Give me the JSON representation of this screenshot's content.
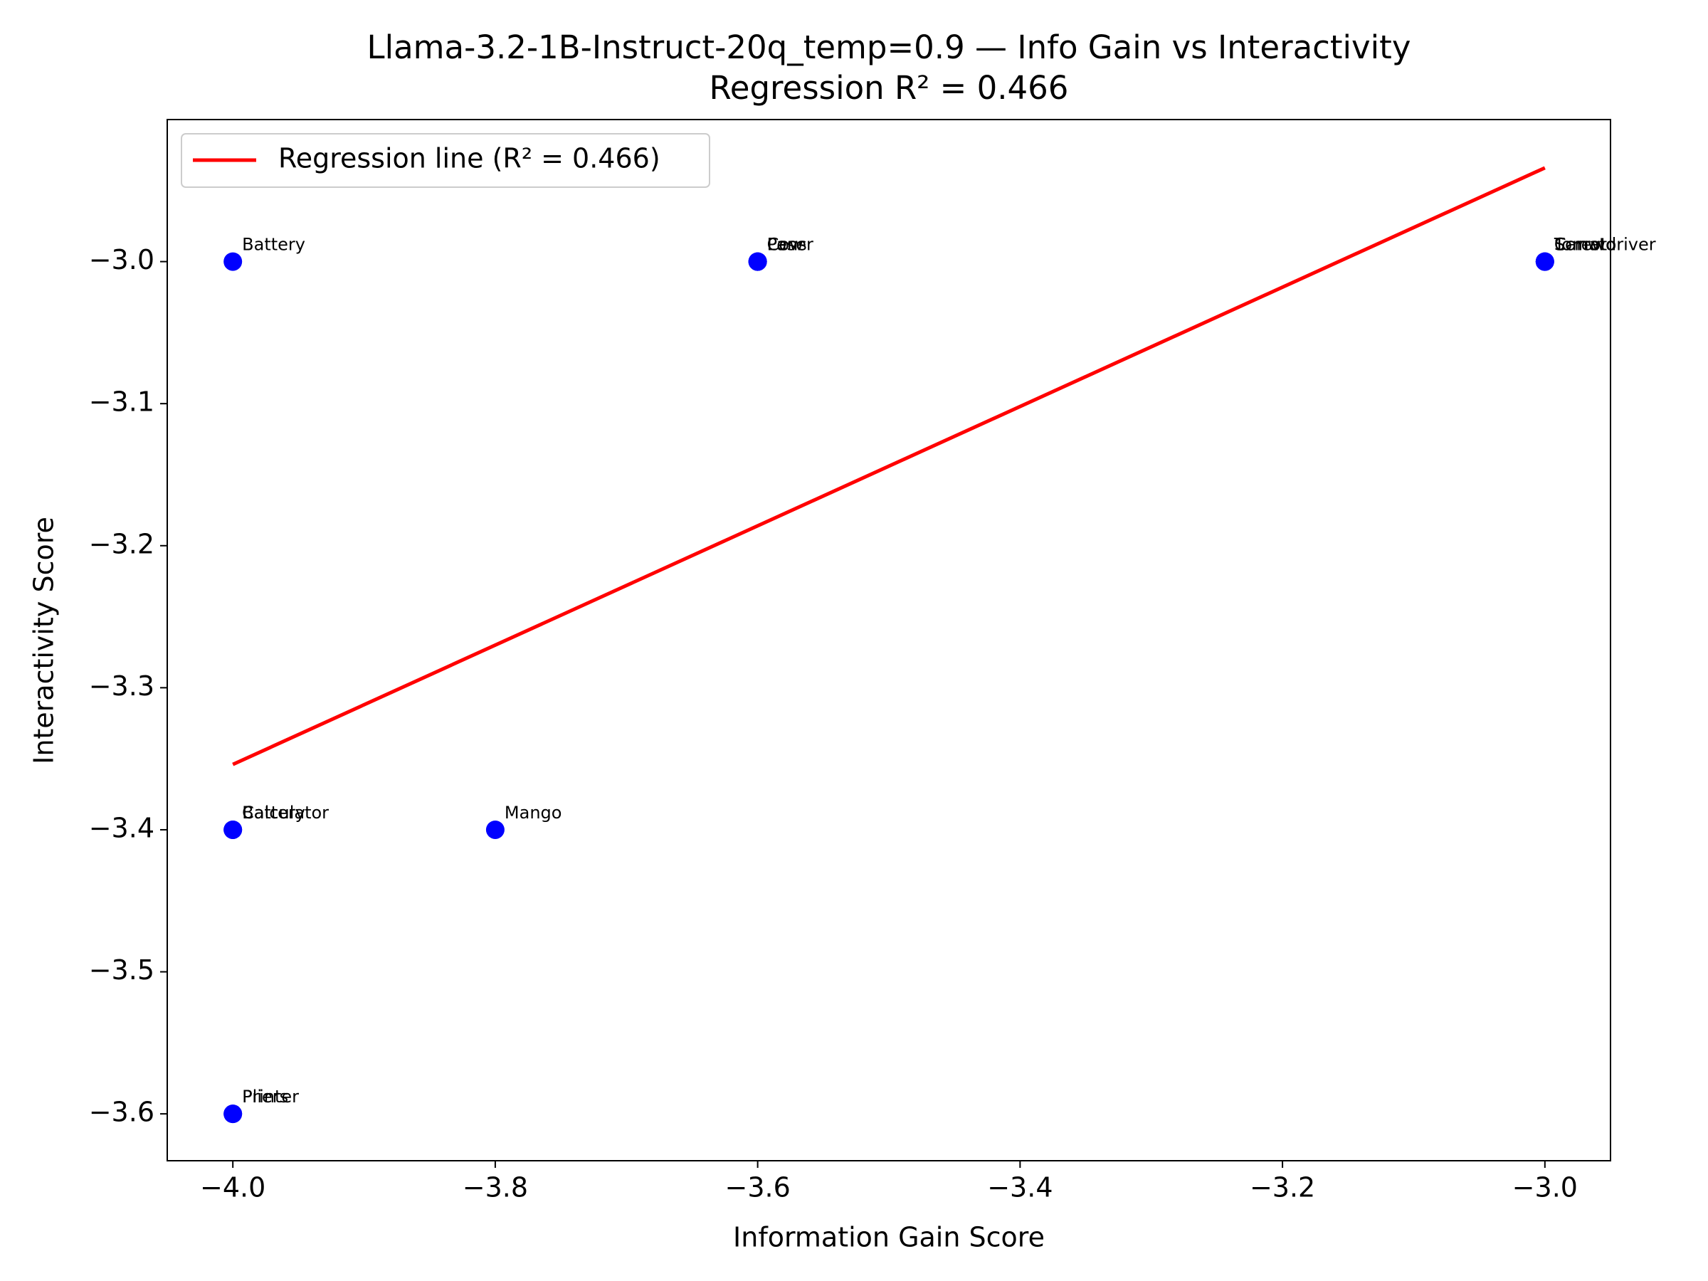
{
  "chart_data": {
    "type": "scatter",
    "title": "Llama-3.2-1B-Instruct-20q_temp=0.9 — Info Gain vs Interactivity",
    "subtitle": "Regression R² = 0.466",
    "x_label": "Information Gain Score",
    "y_label": "Interactivity Score",
    "series": [
      {
        "name": "Points",
        "color": "#0000ff",
        "x": [
          -4.0,
          -3.6,
          -3.6,
          -3.6,
          -3.0,
          -3.0,
          -3.0,
          -4.0,
          -4.0,
          -3.8,
          -4.0,
          -4.0
        ],
        "values": [
          -3.0,
          -3.0,
          -3.0,
          -3.0,
          -3.0,
          -3.0,
          -3.0,
          -3.4,
          -3.4,
          -3.4,
          -3.6,
          -3.6
        ],
        "labels": [
          "Battery",
          "Laser",
          "Pens",
          "Cow",
          "Screwdriver",
          "Tomato",
          "Carrot",
          "Calculator",
          "Battery",
          "Mango",
          "Printer",
          "Pliers"
        ]
      }
    ],
    "regression": {
      "name": "Regression line (R² = 0.466)",
      "color": "#ff0000",
      "x": [
        -4.0,
        -3.0
      ],
      "values": [
        -3.354,
        -2.934
      ]
    },
    "legend": "upper left",
    "xlim": [
      -4.05,
      -2.95
    ],
    "ylim": [
      -3.633,
      -2.9
    ],
    "xticks": [
      {
        "value": -4.0,
        "label": "−4.0"
      },
      {
        "value": -3.8,
        "label": "−3.8"
      },
      {
        "value": -3.6,
        "label": "−3.6"
      },
      {
        "value": -3.4,
        "label": "−3.4"
      },
      {
        "value": -3.2,
        "label": "−3.2"
      },
      {
        "value": -3.0,
        "label": "−3.0"
      }
    ],
    "yticks": [
      {
        "value": -3.6,
        "label": "−3.6"
      },
      {
        "value": -3.5,
        "label": "−3.5"
      },
      {
        "value": -3.4,
        "label": "−3.4"
      },
      {
        "value": -3.3,
        "label": "−3.3"
      },
      {
        "value": -3.2,
        "label": "−3.2"
      },
      {
        "value": -3.1,
        "label": "−3.1"
      },
      {
        "value": -3.0,
        "label": "−3.0"
      }
    ]
  }
}
